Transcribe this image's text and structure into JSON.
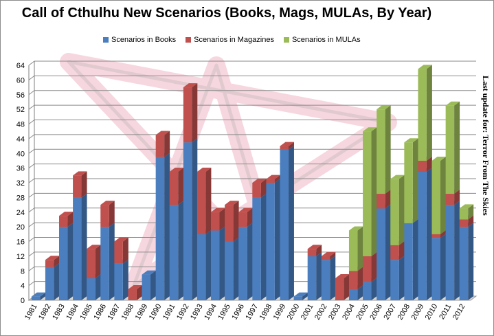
{
  "title": "Call of Cthulhu  New Scenarios  (Books, Mags, MULAs, By Year)",
  "side_note": "Last update for: Terror From The Skies",
  "colors": {
    "books": "#4a7ebf",
    "magazines": "#c0504d",
    "mulas": "#9bbb59",
    "grid": "#8a8a8a",
    "watermark": "#f2b8c6"
  },
  "chart_data": {
    "type": "bar",
    "stacked": true,
    "categories": [
      "1981",
      "1982",
      "1983",
      "1984",
      "1985",
      "1986",
      "1987",
      "1988",
      "1989",
      "1990",
      "1991",
      "1992",
      "1993",
      "1994",
      "1995",
      "1996",
      "1997",
      "1998",
      "1999",
      "2000",
      "2001",
      "2002",
      "2003",
      "2004",
      "2005",
      "2006",
      "2007",
      "2008",
      "2009",
      "2010",
      "2011",
      "2012"
    ],
    "series": [
      {
        "name": "Scenarios in Books",
        "color": "#4a7ebf",
        "values": [
          1,
          9,
          20,
          28,
          6,
          20,
          10,
          0,
          7,
          39,
          26,
          43,
          18,
          19,
          16,
          20,
          28,
          32,
          41,
          1,
          12,
          11,
          0,
          3,
          5,
          25,
          11,
          21,
          35,
          17,
          26,
          20
        ]
      },
      {
        "name": "Scenarios in Magazines",
        "color": "#c0504d",
        "values": [
          0,
          2,
          3,
          6,
          8,
          6,
          6,
          3,
          0,
          6,
          9,
          15,
          17,
          5,
          10,
          4,
          4,
          1,
          1,
          0,
          2,
          1,
          6,
          5,
          7,
          4,
          4,
          0,
          3,
          1,
          3,
          2
        ]
      },
      {
        "name": "Scenarios in MULAs",
        "color": "#9bbb59",
        "values": [
          0,
          0,
          0,
          0,
          0,
          0,
          0,
          0,
          0,
          0,
          0,
          0,
          0,
          0,
          0,
          0,
          0,
          0,
          0,
          0,
          0,
          0,
          0,
          11,
          34,
          23,
          18,
          22,
          25,
          20,
          24,
          3
        ]
      }
    ],
    "ylim": [
      0,
      64
    ],
    "yticks": [
      0,
      4,
      8,
      12,
      16,
      20,
      24,
      28,
      32,
      36,
      40,
      44,
      48,
      52,
      56,
      60,
      64
    ],
    "grid": true,
    "legend_position": "top"
  }
}
